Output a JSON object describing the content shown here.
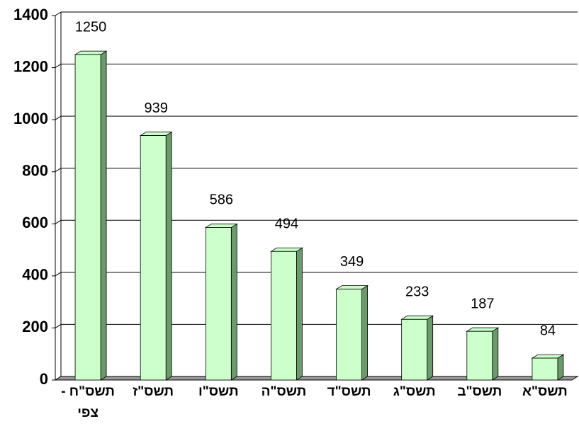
{
  "chart_data": {
    "type": "bar",
    "categories": [
      "תשס\"ח - צפי",
      "תשס\"ז",
      "תשס\"ו",
      "תשס\"ה",
      "תשס\"ד",
      "תשס\"ג",
      "תשס\"ב",
      "תשס\"א"
    ],
    "values": [
      1250,
      939,
      586,
      494,
      349,
      233,
      187,
      84
    ],
    "color": "#ccffcc",
    "side_color": "#6b9a6b",
    "ylim": [
      0,
      1400
    ],
    "yticks": [
      0,
      200,
      400,
      600,
      800,
      1000,
      1200,
      1400
    ],
    "grid": true
  }
}
